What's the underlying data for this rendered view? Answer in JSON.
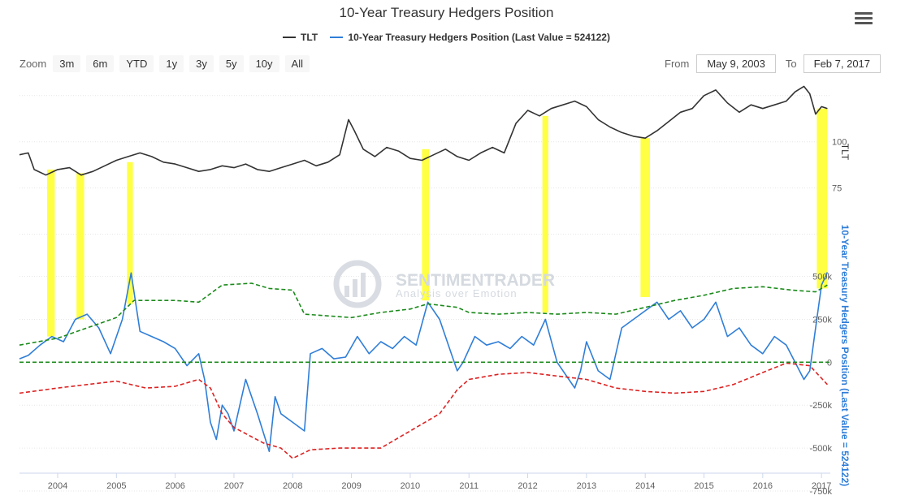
{
  "header": {
    "title": "10-Year Treasury Hedgers Position",
    "menu_icon": "hamburger-icon"
  },
  "legend": {
    "items": [
      {
        "label": "TLT",
        "color": "#333333"
      },
      {
        "label": "10-Year Treasury Hedgers Position (Last Value = 524122)",
        "color": "#2f7ed8"
      }
    ]
  },
  "range_selector": {
    "zoom_label": "Zoom",
    "buttons": [
      "3m",
      "6m",
      "YTD",
      "1y",
      "3y",
      "5y",
      "10y",
      "All"
    ],
    "from_label": "From",
    "from_value": "May 9, 2003",
    "to_label": "To",
    "to_value": "Feb 7, 2017"
  },
  "watermark": {
    "brand": "SENTIMENTRADER",
    "tagline": "Analysis over Emotion"
  },
  "chart_data": {
    "type": "line",
    "title": "10-Year Treasury Hedgers Position",
    "x_axis": {
      "range": [
        2003.35,
        2017.15
      ],
      "tick_labels": [
        "2004",
        "2005",
        "2006",
        "2007",
        "2008",
        "2009",
        "2010",
        "2011",
        "2012",
        "2013",
        "2014",
        "2015",
        "2016",
        "2017"
      ]
    },
    "y_axes": [
      {
        "name": "TLT",
        "label": "TLT",
        "range": [
          45,
          135
        ],
        "tick_labels": [
          "75",
          "100"
        ],
        "ticks": [
          75,
          100
        ]
      },
      {
        "name": "hedgers",
        "label": "10-Year Treasury Hedgers Position (Last Value = 524122)",
        "range": [
          -750000,
          550000
        ],
        "tick_labels": [
          "500k",
          "250k",
          "0",
          "-250k",
          "-500k",
          "-750k"
        ],
        "ticks": [
          500000,
          250000,
          0,
          -250000,
          -500000,
          -750000
        ]
      }
    ],
    "series": [
      {
        "name": "TLT",
        "axis": "TLT",
        "color": "#333333",
        "dash": "solid",
        "x": [
          2003.35,
          2003.5,
          2003.6,
          2003.8,
          2004.0,
          2004.2,
          2004.4,
          2004.6,
          2004.8,
          2005.0,
          2005.2,
          2005.4,
          2005.6,
          2005.8,
          2006.0,
          2006.2,
          2006.4,
          2006.6,
          2006.8,
          2007.0,
          2007.2,
          2007.4,
          2007.6,
          2007.8,
          2008.0,
          2008.2,
          2008.4,
          2008.6,
          2008.8,
          2008.95,
          2009.05,
          2009.2,
          2009.4,
          2009.6,
          2009.8,
          2010.0,
          2010.2,
          2010.4,
          2010.6,
          2010.8,
          2011.0,
          2011.2,
          2011.4,
          2011.6,
          2011.8,
          2012.0,
          2012.2,
          2012.4,
          2012.6,
          2012.8,
          2013.0,
          2013.2,
          2013.4,
          2013.6,
          2013.8,
          2014.0,
          2014.2,
          2014.4,
          2014.6,
          2014.8,
          2015.0,
          2015.2,
          2015.4,
          2015.6,
          2015.8,
          2016.0,
          2016.2,
          2016.4,
          2016.55,
          2016.7,
          2016.8,
          2016.9,
          2017.0,
          2017.1
        ],
        "values": [
          93,
          94,
          85,
          82,
          85,
          86,
          82,
          84,
          87,
          90,
          92,
          94,
          92,
          89,
          88,
          86,
          84,
          85,
          87,
          86,
          88,
          85,
          84,
          86,
          88,
          90,
          87,
          89,
          93,
          112,
          106,
          96,
          92,
          97,
          95,
          91,
          90,
          93,
          96,
          92,
          90,
          94,
          97,
          94,
          110,
          117,
          114,
          118,
          120,
          122,
          119,
          112,
          108,
          105,
          103,
          102,
          106,
          111,
          116,
          118,
          125,
          128,
          121,
          116,
          120,
          118,
          120,
          122,
          127,
          130,
          126,
          115,
          119,
          118
        ]
      },
      {
        "name": "10-Year Treasury Hedgers Position (Last Value = 524122)",
        "axis": "hedgers",
        "color": "#2f7ed8",
        "dash": "solid",
        "x": [
          2003.35,
          2003.5,
          2003.7,
          2003.9,
          2004.1,
          2004.3,
          2004.5,
          2004.7,
          2004.9,
          2005.1,
          2005.25,
          2005.4,
          2005.6,
          2005.8,
          2006.0,
          2006.2,
          2006.4,
          2006.5,
          2006.6,
          2006.7,
          2006.8,
          2006.9,
          2007.0,
          2007.2,
          2007.4,
          2007.6,
          2007.7,
          2007.8,
          2008.0,
          2008.2,
          2008.3,
          2008.5,
          2008.7,
          2008.9,
          2009.1,
          2009.3,
          2009.5,
          2009.7,
          2009.9,
          2010.1,
          2010.3,
          2010.5,
          2010.7,
          2010.8,
          2010.9,
          2011.1,
          2011.3,
          2011.5,
          2011.7,
          2011.9,
          2012.1,
          2012.3,
          2012.5,
          2012.7,
          2012.8,
          2012.9,
          2013.0,
          2013.2,
          2013.4,
          2013.6,
          2013.8,
          2014.0,
          2014.2,
          2014.4,
          2014.6,
          2014.8,
          2015.0,
          2015.2,
          2015.4,
          2015.6,
          2015.8,
          2016.0,
          2016.2,
          2016.4,
          2016.55,
          2016.7,
          2016.8,
          2016.9,
          2017.0,
          2017.1
        ],
        "values": [
          20000,
          40000,
          100000,
          150000,
          120000,
          250000,
          280000,
          200000,
          50000,
          250000,
          520000,
          180000,
          150000,
          120000,
          80000,
          -20000,
          50000,
          -100000,
          -350000,
          -450000,
          -250000,
          -300000,
          -400000,
          -100000,
          -300000,
          -520000,
          -200000,
          -300000,
          -350000,
          -400000,
          50000,
          80000,
          20000,
          30000,
          150000,
          50000,
          120000,
          80000,
          150000,
          100000,
          350000,
          250000,
          50000,
          -50000,
          0,
          150000,
          100000,
          120000,
          80000,
          150000,
          100000,
          250000,
          0,
          -100000,
          -150000,
          -50000,
          120000,
          -50000,
          -100000,
          200000,
          250000,
          300000,
          350000,
          250000,
          300000,
          200000,
          250000,
          350000,
          150000,
          200000,
          100000,
          50000,
          150000,
          100000,
          0,
          -100000,
          -50000,
          200000,
          450000,
          524122
        ]
      },
      {
        "name": "Upper band",
        "axis": "hedgers",
        "color": "#1a8a1a",
        "dash": "dashed",
        "x": [
          2003.35,
          2004.0,
          2004.5,
          2005.0,
          2005.3,
          2006.0,
          2006.4,
          2006.8,
          2007.3,
          2007.6,
          2008.0,
          2008.2,
          2009.0,
          2009.5,
          2010.0,
          2010.3,
          2010.8,
          2011.0,
          2011.5,
          2012.0,
          2012.5,
          2013.0,
          2013.5,
          2014.0,
          2014.5,
          2015.0,
          2015.5,
          2016.0,
          2016.5,
          2016.9,
          2017.1
        ],
        "values": [
          100000,
          140000,
          200000,
          260000,
          360000,
          360000,
          350000,
          450000,
          460000,
          430000,
          420000,
          280000,
          260000,
          290000,
          310000,
          340000,
          320000,
          290000,
          280000,
          290000,
          280000,
          290000,
          280000,
          320000,
          360000,
          390000,
          430000,
          440000,
          420000,
          410000,
          450000
        ]
      },
      {
        "name": "Lower band",
        "axis": "hedgers",
        "color": "#dd2222",
        "dash": "dashed",
        "x": [
          2003.35,
          2004.0,
          2004.5,
          2005.0,
          2005.5,
          2006.0,
          2006.4,
          2006.6,
          2006.8,
          2007.0,
          2007.5,
          2007.8,
          2008.0,
          2008.3,
          2008.8,
          2009.5,
          2010.0,
          2010.5,
          2010.8,
          2011.0,
          2011.5,
          2012.0,
          2012.5,
          2013.0,
          2013.5,
          2014.0,
          2014.5,
          2015.0,
          2015.5,
          2016.0,
          2016.4,
          2016.8,
          2017.1
        ],
        "values": [
          -180000,
          -150000,
          -130000,
          -110000,
          -150000,
          -140000,
          -100000,
          -150000,
          -300000,
          -380000,
          -470000,
          -500000,
          -560000,
          -510000,
          -500000,
          -500000,
          -400000,
          -300000,
          -160000,
          -100000,
          -70000,
          -60000,
          -80000,
          -100000,
          -150000,
          -170000,
          -180000,
          -170000,
          -130000,
          -60000,
          -5000,
          -20000,
          -130000
        ]
      },
      {
        "name": "Zero line",
        "axis": "hedgers",
        "color": "#1a8a1a",
        "dash": "dashed",
        "x": [
          2003.35,
          2017.15
        ],
        "values": [
          0,
          0
        ]
      }
    ],
    "highlight_bands": [
      {
        "x": [
          2003.82,
          2003.95
        ],
        "tlt_top": 85,
        "hedger_bottom": 150000
      },
      {
        "x": [
          2004.32,
          2004.45
        ],
        "tlt_top": 83,
        "hedger_bottom": 250000
      },
      {
        "x": [
          2005.18,
          2005.28
        ],
        "tlt_top": 89,
        "hedger_bottom": 340000
      },
      {
        "x": [
          2010.2,
          2010.32
        ],
        "tlt_top": 96,
        "hedger_bottom": 360000
      },
      {
        "x": [
          2012.25,
          2012.35
        ],
        "tlt_top": 114,
        "hedger_bottom": 290000
      },
      {
        "x": [
          2013.92,
          2014.08
        ],
        "tlt_top": 102,
        "hedger_bottom": 380000
      },
      {
        "x": [
          2016.92,
          2017.1
        ],
        "tlt_top": 118,
        "hedger_bottom": 430000
      }
    ],
    "highlight_color": "#ffff44"
  }
}
